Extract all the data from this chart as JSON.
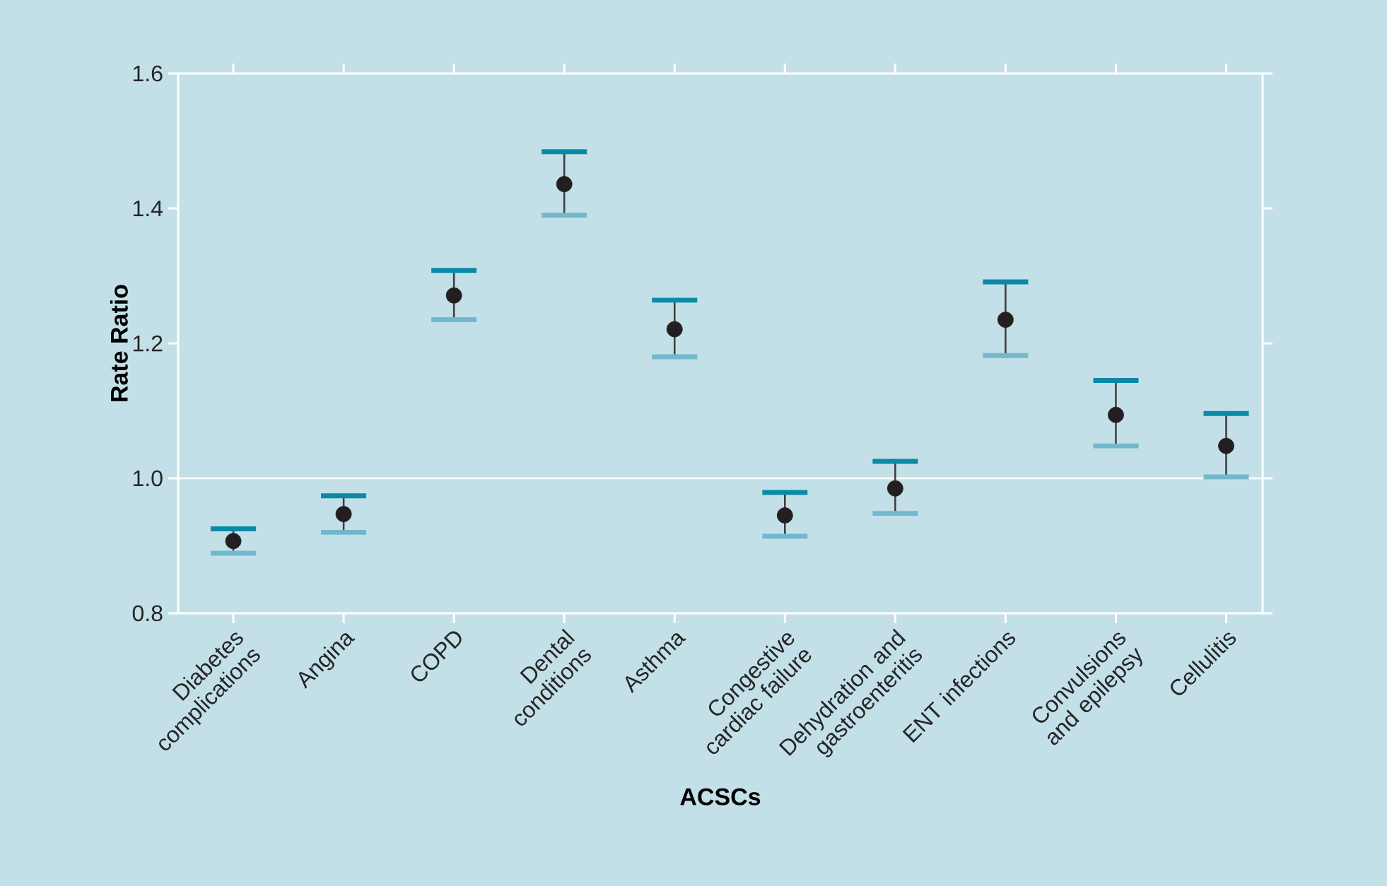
{
  "chart_data": {
    "type": "scatter",
    "xlabel": "ACSCs",
    "ylabel": "Rate Ratio",
    "categories": [
      "Diabetes complications",
      "Angina",
      "COPD",
      "Dental conditions",
      "Asthma",
      "Congestive cardiac failure",
      "Dehydration and gastroenteritis",
      "ENT infections",
      "Convulsions and epilepsy",
      "Cellulitis"
    ],
    "values": [
      0.907,
      0.947,
      1.271,
      1.436,
      1.221,
      0.945,
      0.985,
      1.235,
      1.094,
      1.048
    ],
    "errors": [
      [
        0.889,
        0.925
      ],
      [
        0.92,
        0.974
      ],
      [
        1.235,
        1.308
      ],
      [
        1.39,
        1.484
      ],
      [
        1.18,
        1.264
      ],
      [
        0.914,
        0.979
      ],
      [
        0.948,
        1.025
      ],
      [
        1.182,
        1.291
      ],
      [
        1.048,
        1.145
      ],
      [
        1.002,
        1.096
      ]
    ],
    "color": "#231f20",
    "grid": false,
    "ylim": [
      0.8,
      1.6
    ],
    "yticks": [
      {
        "value": 0.8,
        "label": "0.8"
      },
      {
        "value": 1.0,
        "label": "1.0"
      },
      {
        "value": 1.2,
        "label": "1.2"
      },
      {
        "value": 1.4,
        "label": "1.4"
      },
      {
        "value": 1.6,
        "label": "1.6"
      }
    ],
    "ref_lines": [
      {
        "axis": "y",
        "value": 1.0,
        "color": "#ffffff"
      }
    ]
  }
}
